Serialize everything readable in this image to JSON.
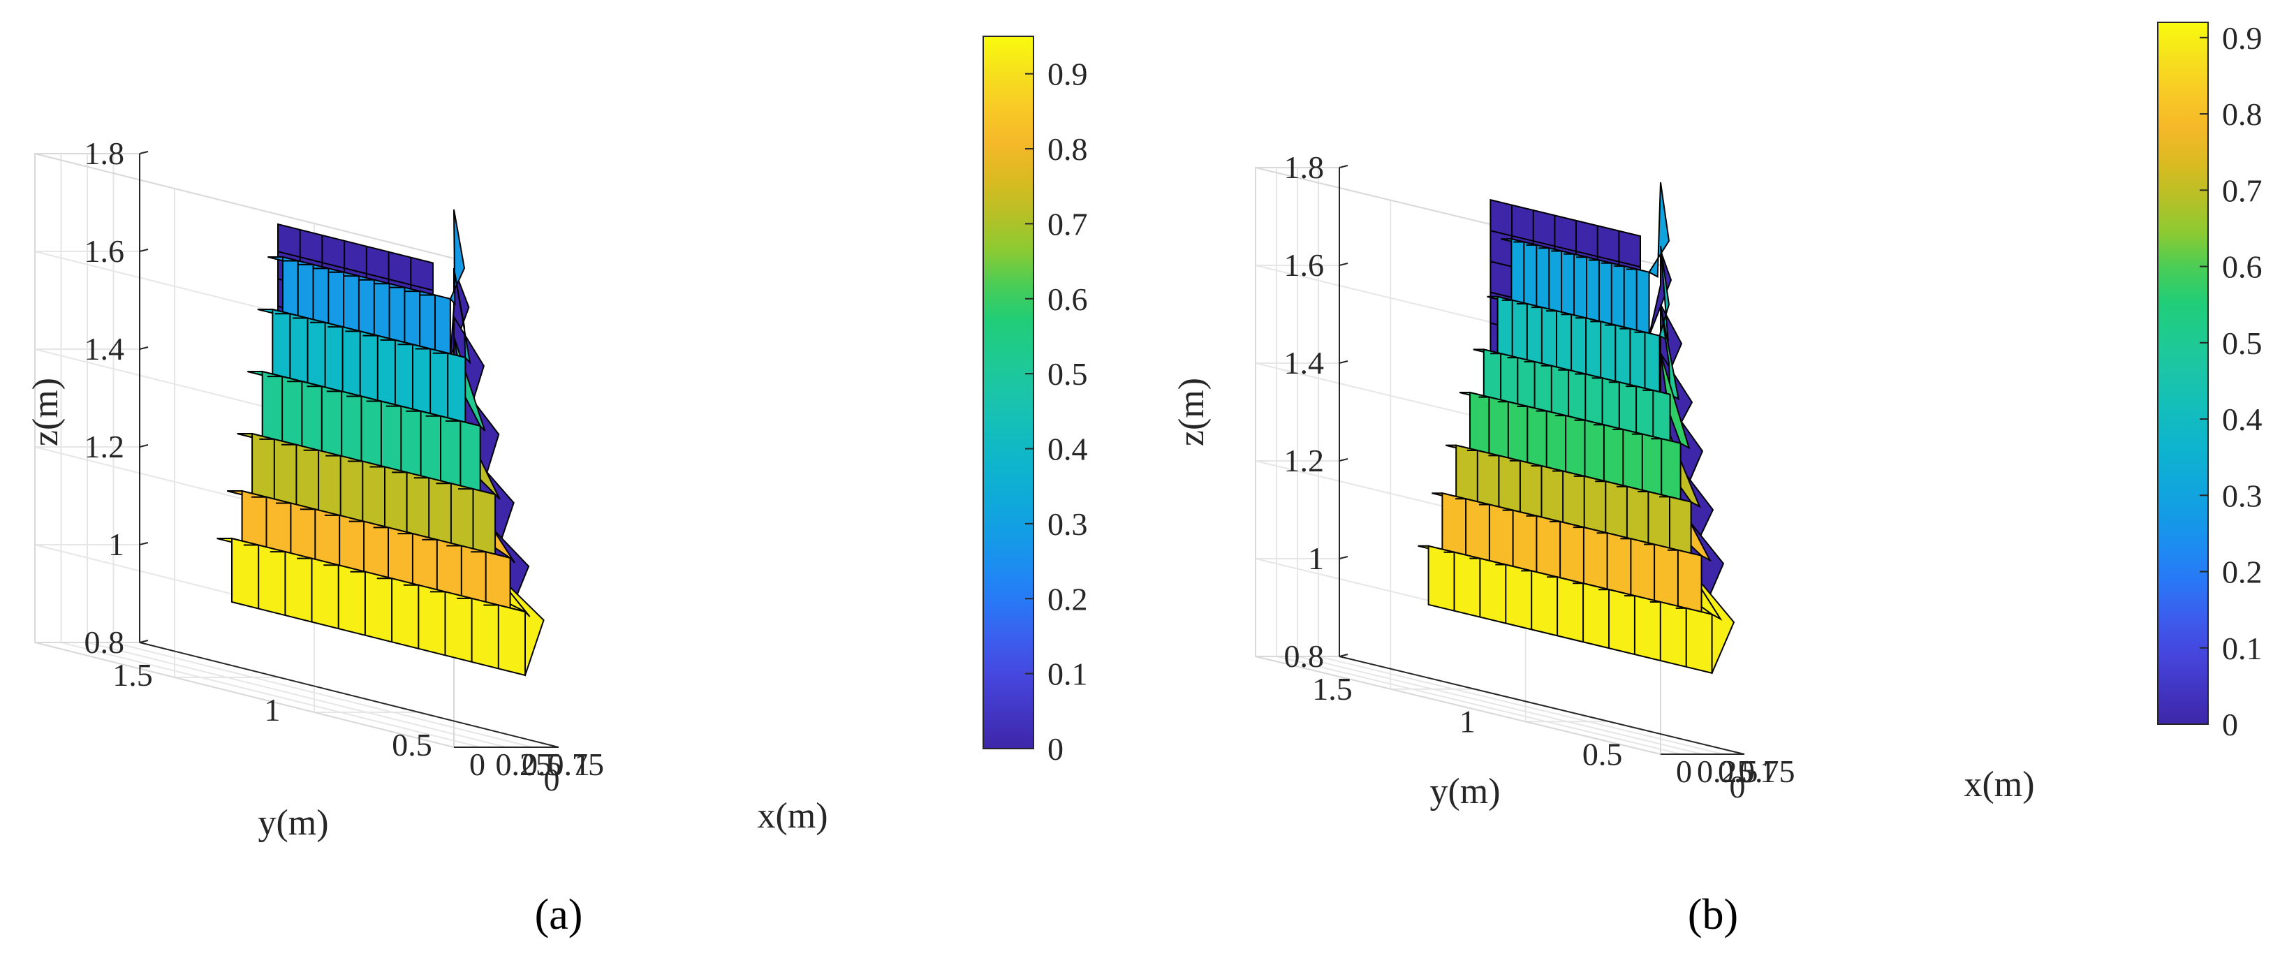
{
  "figure": {
    "captions": [
      "(a)",
      "(b)"
    ]
  },
  "chart_data": [
    {
      "type": "surface3d",
      "panel": "(a)",
      "xlabel": "x(m)",
      "ylabel": "y(m)",
      "zlabel": "z(m)",
      "x_ticks": [
        "0",
        "0.25",
        "0.5",
        "0.75",
        "1"
      ],
      "y_ticks": [
        "0",
        "0.5",
        "1",
        "1.5"
      ],
      "z_ticks": [
        "0.8",
        "1",
        "1.2",
        "1.4",
        "1.6",
        "1.8"
      ],
      "xlim": [
        0,
        1
      ],
      "ylim": [
        0,
        1.5
      ],
      "zlim": [
        0.8,
        1.8
      ],
      "colorbar": {
        "ticks": [
          "0",
          "0.1",
          "0.2",
          "0.3",
          "0.4",
          "0.5",
          "0.6",
          "0.7",
          "0.8",
          "0.9"
        ],
        "range": [
          0,
          0.95
        ]
      },
      "front_steps": [
        {
          "z_lower": 0.93,
          "z_upper": 1.06,
          "value": 0.93
        },
        {
          "z_lower": 1.06,
          "z_upper": 1.17,
          "value": 0.82
        },
        {
          "z_lower": 1.17,
          "z_upper": 1.3,
          "value": 0.72
        },
        {
          "z_lower": 1.3,
          "z_upper": 1.44,
          "value": 0.52
        },
        {
          "z_lower": 1.44,
          "z_upper": 1.58,
          "value": 0.4
        },
        {
          "z_lower": 1.58,
          "z_upper": 1.7,
          "value": 0.28
        }
      ],
      "wall_value": 0.0
    },
    {
      "type": "surface3d",
      "panel": "(b)",
      "xlabel": "x(m)",
      "ylabel": "y(m)",
      "zlabel": "z(m)",
      "x_ticks": [
        "0",
        "0.25",
        "0.5",
        "0.75",
        "1"
      ],
      "y_ticks": [
        "0",
        "0.5",
        "1",
        "1.5"
      ],
      "z_ticks": [
        "0.8",
        "1",
        "1.2",
        "1.4",
        "1.6",
        "1.8"
      ],
      "xlim": [
        0,
        1
      ],
      "ylim": [
        0,
        1.5
      ],
      "zlim": [
        0.8,
        1.8
      ],
      "colorbar": {
        "ticks": [
          "0",
          "0.1",
          "0.2",
          "0.3",
          "0.4",
          "0.5",
          "0.6",
          "0.7",
          "0.8",
          "0.9"
        ],
        "range": [
          0,
          0.92
        ]
      },
      "front_steps": [
        {
          "z_lower": 0.95,
          "z_upper": 1.07,
          "value": 0.9
        },
        {
          "z_lower": 1.07,
          "z_upper": 1.19,
          "value": 0.8
        },
        {
          "z_lower": 1.19,
          "z_upper": 1.3,
          "value": 0.7
        },
        {
          "z_lower": 1.3,
          "z_upper": 1.42,
          "value": 0.58
        },
        {
          "z_lower": 1.42,
          "z_upper": 1.52,
          "value": 0.5
        },
        {
          "z_lower": 1.52,
          "z_upper": 1.64,
          "value": 0.42
        },
        {
          "z_lower": 1.64,
          "z_upper": 1.77,
          "value": 0.3
        }
      ],
      "wall_value": 0.0
    }
  ]
}
